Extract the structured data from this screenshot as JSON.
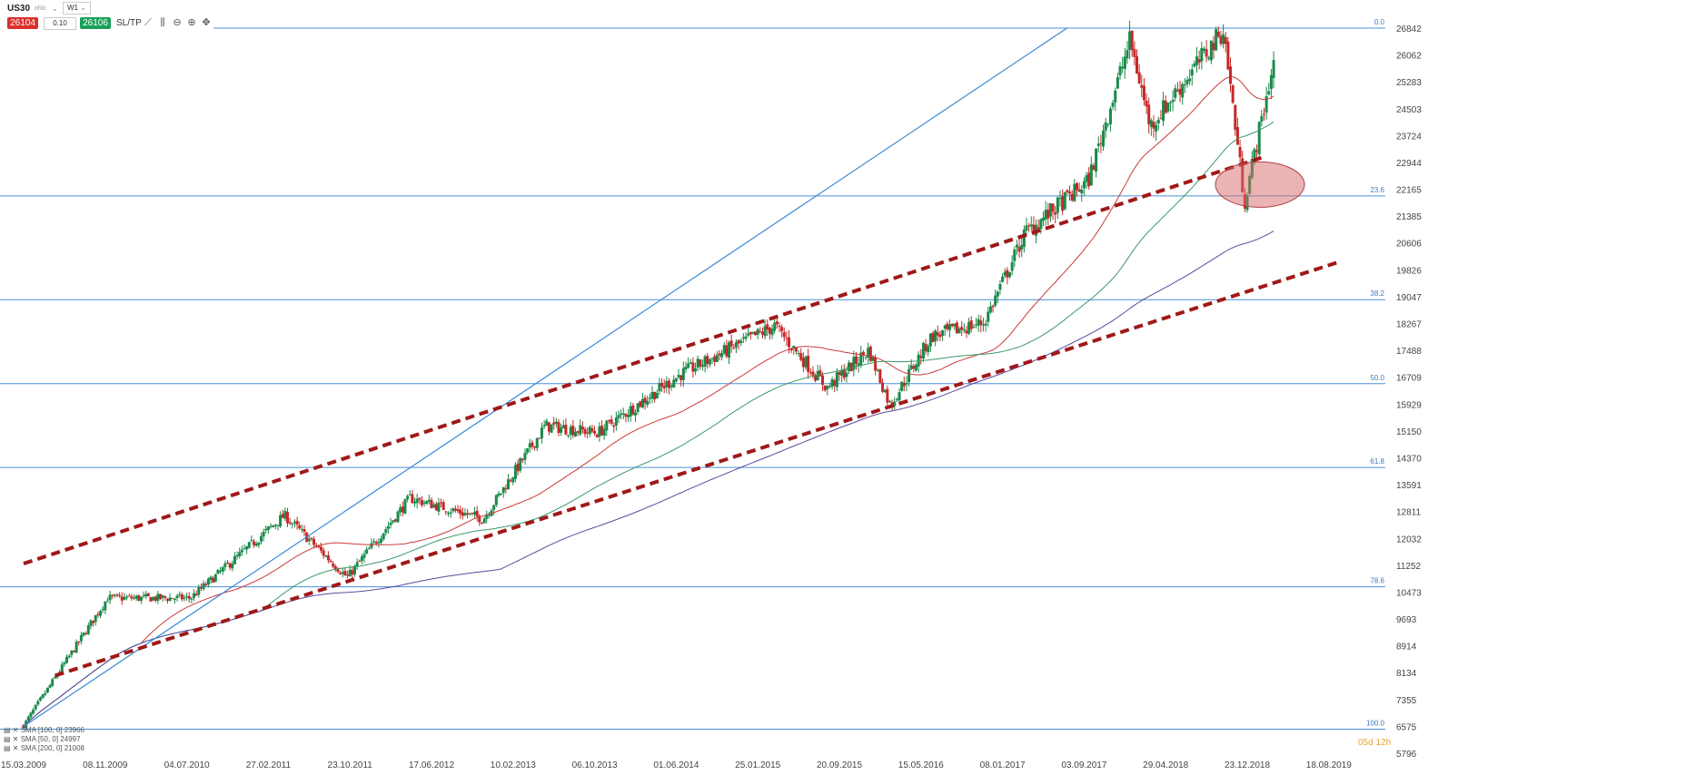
{
  "toolbar": {
    "symbol": "US30",
    "symbol_sub": "ohlc",
    "timeframe": "W1",
    "sell_price": "26104",
    "lot_size": "0.10",
    "buy_price": "26106",
    "sltp_label": "SL/TP",
    "icons": [
      "line-chart-icon",
      "indicators-icon",
      "zoom-out-icon",
      "zoom-in-icon",
      "crosshair-icon"
    ]
  },
  "timer": "05d 12h",
  "sma_legend": [
    "SMA [100, 0] 23966",
    "SMA [50, 0] 24997",
    "SMA [200, 0] 21008"
  ],
  "colors": {
    "up_candle": "#1a8a4a",
    "down_candle": "#c62828",
    "fib_line": "#4a90d9",
    "trend_line": "#3a8ad6",
    "channel": "#a01818",
    "sma50": "#cc3a3a",
    "sma100": "#3a9a6a",
    "sma200": "#5a4aa0",
    "ellipse_fill": "#d66a6a"
  },
  "chart_data": {
    "type": "candlestick",
    "ylim": [
      5796,
      27400
    ],
    "y_ticks": [
      26842,
      26062,
      25283,
      24503,
      23724,
      22944,
      22165,
      21385,
      20606,
      19826,
      19047,
      18267,
      17488,
      16709,
      15929,
      15150,
      14370,
      13591,
      12811,
      12032,
      11252,
      10473,
      9693,
      8914,
      8134,
      7355,
      6575,
      5796
    ],
    "x_ticks": [
      "15.03.2009",
      "08.11.2009",
      "04.07.2010",
      "27.02.2011",
      "23.10.2011",
      "17.06.2012",
      "10.02.2013",
      "06.10.2013",
      "01.06.2014",
      "25.01.2015",
      "20.09.2015",
      "15.05.2016",
      "08.01.2017",
      "03.09.2017",
      "29.04.2018",
      "23.12.2018",
      "18.08.2019"
    ],
    "fib_levels": [
      {
        "label": "0.0",
        "value": 26842
      },
      {
        "label": "23.6",
        "value": 21971
      },
      {
        "label": "38.2",
        "value": 18960
      },
      {
        "label": "50.0",
        "value": 16522
      },
      {
        "label": "61.8",
        "value": 14089
      },
      {
        "label": "78.6",
        "value": 10627
      },
      {
        "label": "100.0",
        "value": 6495
      }
    ],
    "sma_series": [
      {
        "name": "SMA [50, 0]",
        "last": 24997
      },
      {
        "name": "SMA [100, 0]",
        "last": 23966
      },
      {
        "name": "SMA [200, 0]",
        "last": 21008
      }
    ],
    "key_points": [
      {
        "date": "2009-03",
        "close": 6600
      },
      {
        "date": "2009-11",
        "close": 10300
      },
      {
        "date": "2010-07",
        "close": 10300
      },
      {
        "date": "2011-04",
        "close": 12700
      },
      {
        "date": "2011-10",
        "close": 10900
      },
      {
        "date": "2012-04",
        "close": 13200
      },
      {
        "date": "2012-11",
        "close": 12600
      },
      {
        "date": "2013-05",
        "close": 15300
      },
      {
        "date": "2013-10",
        "close": 15100
      },
      {
        "date": "2014-06",
        "close": 16800
      },
      {
        "date": "2015-03",
        "close": 18200
      },
      {
        "date": "2015-08",
        "close": 16400
      },
      {
        "date": "2015-12",
        "close": 17500
      },
      {
        "date": "2016-02",
        "close": 15900
      },
      {
        "date": "2016-06",
        "close": 17900
      },
      {
        "date": "2016-11",
        "close": 18300
      },
      {
        "date": "2017-03",
        "close": 20900
      },
      {
        "date": "2017-09",
        "close": 22400
      },
      {
        "date": "2018-01",
        "close": 26500
      },
      {
        "date": "2018-03",
        "close": 24000
      },
      {
        "date": "2018-10",
        "close": 26800
      },
      {
        "date": "2018-12",
        "close": 21800
      },
      {
        "date": "2019-03",
        "close": 26100
      }
    ]
  }
}
